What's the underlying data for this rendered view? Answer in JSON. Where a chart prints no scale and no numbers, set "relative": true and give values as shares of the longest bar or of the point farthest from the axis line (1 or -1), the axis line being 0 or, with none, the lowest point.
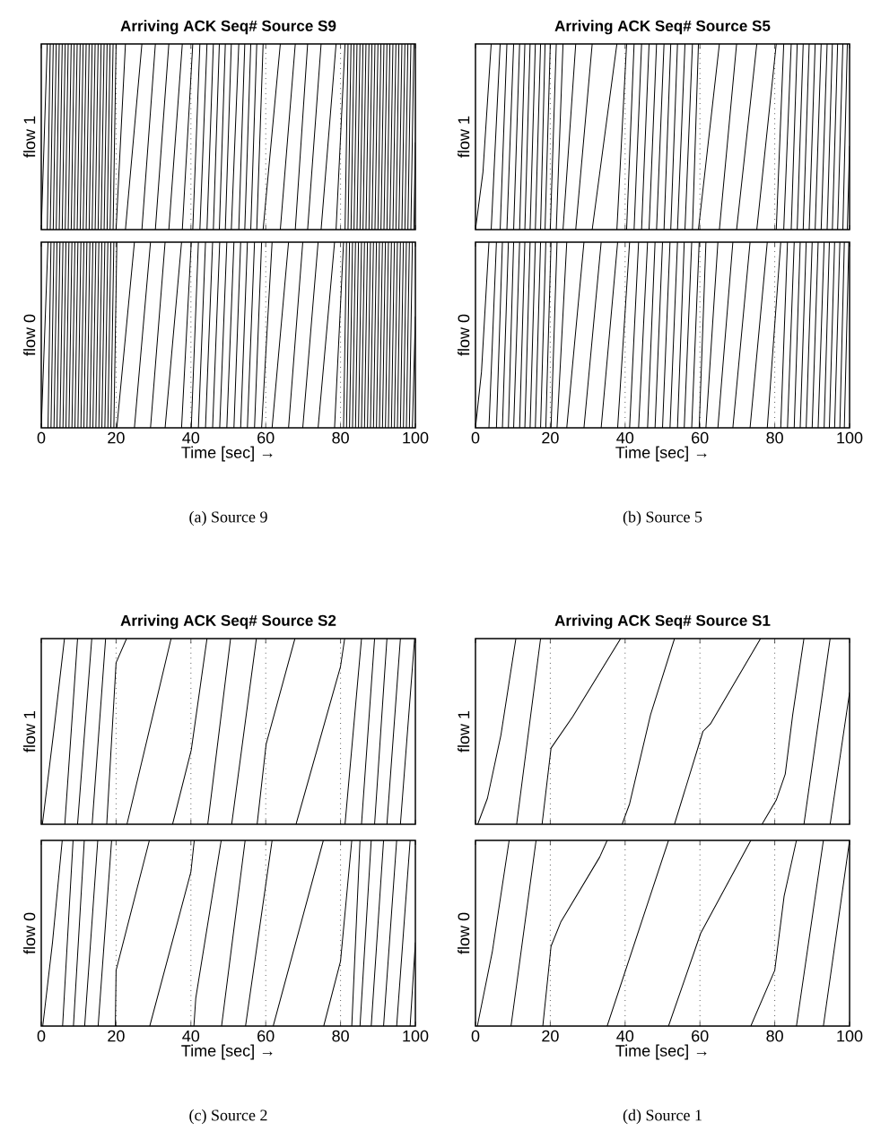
{
  "chart_data": [
    {
      "type": "line",
      "title": "Arriving ACK Seq# Source S9",
      "ylabel": "flow 1",
      "relative": true,
      "xlim": [
        0,
        100
      ],
      "xticks": [
        0,
        20,
        40,
        60,
        80,
        100
      ],
      "tick_labels": false,
      "ref_lines": [
        {
          "axis": "x",
          "value": 20,
          "color": "#000000",
          "line_style": "dotted"
        },
        {
          "axis": "x",
          "value": 40,
          "color": "#000000",
          "line_style": "dotted"
        },
        {
          "axis": "x",
          "value": 60,
          "color": "#000000",
          "line_style": "dotted"
        },
        {
          "axis": "x",
          "value": 80,
          "color": "#000000",
          "line_style": "dotted"
        }
      ],
      "series": [
        {
          "color": "#000000",
          "x": [
            0,
            1.6,
            null,
            1.6,
            2.4,
            null,
            2.4,
            3.2,
            null,
            3.2,
            4.0,
            null,
            4.0,
            4.8,
            null,
            4.8,
            5.6,
            null,
            5.6,
            6.4,
            null,
            6.4,
            7.2,
            null,
            7.2,
            8.0,
            null,
            8.0,
            8.8,
            null,
            8.8,
            9.6,
            null,
            9.6,
            10.4,
            null,
            10.4,
            11.2,
            null,
            11.2,
            12.0,
            null,
            12.0,
            12.8,
            null,
            12.8,
            13.6,
            null,
            13.6,
            14.4,
            null,
            14.4,
            15.2,
            null,
            15.2,
            16.0,
            null,
            16.0,
            16.8,
            null,
            16.8,
            17.6,
            null,
            17.6,
            18.4,
            null,
            18.4,
            19.2,
            null,
            19.2,
            20.0,
            null,
            20.0,
            22.5,
            null,
            22.5,
            26.9,
            null,
            26.9,
            30.5,
            null,
            30.5,
            34.1,
            null,
            34.1,
            37.7,
            null,
            37.7,
            40.5,
            null,
            40.5,
            42.4,
            null,
            42.4,
            44.3,
            null,
            44.3,
            46.0,
            null,
            46.0,
            47.6,
            null,
            47.6,
            49.2,
            null,
            49.2,
            50.8,
            null,
            50.8,
            52.8,
            null,
            52.8,
            54.4,
            null,
            54.4,
            56.0,
            null,
            56.0,
            57.6,
            null,
            57.6,
            59.3,
            null,
            59.3,
            63.9,
            null,
            63.9,
            67.9,
            null,
            67.9,
            71.2,
            null,
            71.2,
            74.8,
            null,
            74.8,
            78.8,
            null,
            78.8,
            81.2,
            null,
            81.2,
            82.0,
            null,
            82.0,
            82.8,
            null,
            82.8,
            83.6,
            null,
            83.6,
            84.4,
            null,
            84.4,
            85.2,
            null,
            85.2,
            86.0,
            null,
            86.0,
            86.8,
            null,
            86.8,
            87.6,
            null,
            87.6,
            88.4,
            null,
            88.4,
            89.2,
            null,
            89.2,
            90.0,
            null,
            90.0,
            90.8,
            null,
            90.8,
            91.6,
            null,
            91.6,
            92.4,
            null,
            92.4,
            93.2,
            null,
            93.2,
            94.0,
            null,
            94.0,
            94.8,
            null,
            94.8,
            95.6,
            null,
            95.6,
            96.4,
            null,
            96.4,
            97.2,
            null,
            97.2,
            98.0,
            null,
            98.0,
            98.8,
            null,
            98.8,
            99.6,
            null,
            99.6,
            100
          ],
          "values": [
            0,
            1,
            null,
            0,
            1,
            null,
            0,
            1,
            null,
            0,
            1,
            null,
            0,
            1,
            null,
            0,
            1,
            null,
            0,
            1,
            null,
            0,
            1,
            null,
            0,
            1,
            null,
            0,
            1,
            null,
            0,
            1,
            null,
            0,
            1,
            null,
            0,
            1,
            null,
            0,
            1,
            null,
            0,
            1,
            null,
            0,
            1,
            null,
            0,
            1,
            null,
            0,
            1,
            null,
            0,
            1,
            null,
            0,
            1,
            null,
            0,
            1,
            null,
            0,
            1,
            null,
            0,
            1,
            null,
            0,
            1,
            null,
            0,
            1,
            null,
            0,
            1,
            null,
            0,
            1,
            null,
            0,
            1,
            null,
            0,
            1,
            null,
            0,
            1,
            null,
            0,
            1,
            null,
            0,
            1,
            null,
            0,
            1,
            null,
            0,
            1,
            null,
            0,
            1,
            null,
            0,
            1,
            null,
            0,
            1,
            null,
            0,
            1,
            null,
            0,
            1,
            null,
            0,
            1,
            null,
            0,
            1,
            null,
            0,
            1,
            null,
            0,
            1,
            null,
            0,
            1,
            null,
            0,
            1,
            null,
            0,
            1,
            null,
            0,
            1,
            null,
            0,
            1,
            null,
            0,
            1,
            null,
            0,
            1,
            null,
            0,
            1,
            null,
            0,
            1,
            null,
            0,
            1,
            null,
            0,
            1,
            null,
            0,
            1,
            null,
            0,
            1,
            null,
            0,
            1,
            null,
            0,
            1,
            null,
            0,
            1,
            null,
            0,
            1,
            null,
            0,
            1,
            null,
            0,
            1,
            null,
            0,
            1,
            null,
            0,
            1,
            null,
            0,
            1,
            null,
            0,
            1,
            null,
            0,
            1,
            null,
            0,
            1,
            null,
            0,
            1,
            null,
            0,
            1,
            null,
            0,
            0.47
          ]
        }
      ]
    },
    {
      "type": "line",
      "ylabel": "flow 0",
      "xlabel": "Time [sec] →",
      "relative": true,
      "xlim": [
        0,
        100
      ],
      "xticks": [
        0,
        20,
        40,
        60,
        80,
        100
      ],
      "tick_labels": "x",
      "annotations": [
        "(a) Source 9"
      ],
      "ref_lines": [
        {
          "axis": "x",
          "value": 20,
          "color": "#000000",
          "line_style": "dotted"
        },
        {
          "axis": "x",
          "value": 40,
          "color": "#000000",
          "line_style": "dotted"
        },
        {
          "axis": "x",
          "value": 60,
          "color": "#000000",
          "line_style": "dotted"
        },
        {
          "axis": "x",
          "value": 80,
          "color": "#000000",
          "line_style": "dotted"
        }
      ],
      "series": [
        {
          "color": "#000000",
          "x": [
            0,
            1.8,
            null,
            1.8,
            2.6,
            null,
            2.6,
            3.4,
            null,
            3.4,
            4.2,
            null,
            4.2,
            5.0,
            null,
            5.0,
            5.8,
            null,
            5.8,
            6.6,
            null,
            6.6,
            7.4,
            null,
            7.4,
            8.2,
            null,
            8.2,
            9.0,
            null,
            9.0,
            9.8,
            null,
            9.8,
            10.6,
            null,
            10.6,
            11.4,
            null,
            11.4,
            12.2,
            null,
            12.2,
            13.0,
            null,
            13.0,
            13.8,
            null,
            13.8,
            14.6,
            null,
            14.6,
            15.4,
            null,
            15.4,
            16.2,
            null,
            16.2,
            17.0,
            null,
            17.0,
            17.8,
            null,
            17.8,
            18.6,
            null,
            18.6,
            19.4,
            null,
            19.4,
            20.2,
            null,
            20.2,
            24.9,
            null,
            24.9,
            29.2,
            null,
            29.2,
            33.1,
            null,
            33.1,
            37.5,
            null,
            37.5,
            40.1,
            null,
            40.1,
            42.0,
            null,
            42.0,
            43.9,
            null,
            43.9,
            45.8,
            null,
            45.8,
            47.7,
            null,
            47.7,
            49.6,
            null,
            49.6,
            51.5,
            null,
            51.5,
            53.3,
            null,
            53.3,
            55.1,
            null,
            55.1,
            57.0,
            null,
            57.0,
            58.9,
            null,
            58.9,
            61.7,
            null,
            61.7,
            66.1,
            null,
            66.1,
            69.9,
            null,
            69.9,
            74.0,
            null,
            74.0,
            78.4,
            null,
            78.4,
            80.8,
            null,
            80.8,
            81.6,
            null,
            81.6,
            82.4,
            null,
            82.4,
            83.2,
            null,
            83.2,
            84.0,
            null,
            84.0,
            84.8,
            null,
            84.8,
            85.6,
            null,
            85.6,
            86.4,
            null,
            86.4,
            87.2,
            null,
            87.2,
            88.0,
            null,
            88.0,
            88.8,
            null,
            88.8,
            89.6,
            null,
            89.6,
            90.4,
            null,
            90.4,
            91.2,
            null,
            91.2,
            92.0,
            null,
            92.0,
            92.8,
            null,
            92.8,
            93.6,
            null,
            93.6,
            94.4,
            null,
            94.4,
            95.2,
            null,
            95.2,
            96.0,
            null,
            96.0,
            96.8,
            null,
            96.8,
            97.6,
            null,
            97.6,
            98.4,
            null,
            98.4,
            99.2,
            null,
            99.2,
            100
          ],
          "values": [
            0,
            1,
            null,
            0,
            1,
            null,
            0,
            1,
            null,
            0,
            1,
            null,
            0,
            1,
            null,
            0,
            1,
            null,
            0,
            1,
            null,
            0,
            1,
            null,
            0,
            1,
            null,
            0,
            1,
            null,
            0,
            1,
            null,
            0,
            1,
            null,
            0,
            1,
            null,
            0,
            1,
            null,
            0,
            1,
            null,
            0,
            1,
            null,
            0,
            1,
            null,
            0,
            1,
            null,
            0,
            1,
            null,
            0,
            1,
            null,
            0,
            1,
            null,
            0,
            1,
            null,
            0,
            1,
            null,
            0,
            1,
            null,
            0,
            1,
            null,
            0,
            1,
            null,
            0,
            1,
            null,
            0,
            1,
            null,
            0,
            1,
            null,
            0,
            1,
            null,
            0,
            1,
            null,
            0,
            1,
            null,
            0,
            1,
            null,
            0,
            1,
            null,
            0,
            1,
            null,
            0,
            1,
            null,
            0,
            1,
            null,
            0,
            1,
            null,
            0,
            1,
            null,
            0,
            1,
            null,
            0,
            1,
            null,
            0,
            1,
            null,
            0,
            1,
            null,
            0,
            1,
            null,
            0,
            1,
            null,
            0,
            1,
            null,
            0,
            1,
            null,
            0,
            1,
            null,
            0,
            1,
            null,
            0,
            1,
            null,
            0,
            1,
            null,
            0,
            1,
            null,
            0,
            1,
            null,
            0,
            1,
            null,
            0,
            1,
            null,
            0,
            1,
            null,
            0,
            1,
            null,
            0,
            1,
            null,
            0,
            1,
            null,
            0,
            1,
            null,
            0,
            1,
            null,
            0,
            1,
            null,
            0,
            1,
            null,
            0,
            1,
            null,
            0,
            1,
            null,
            0,
            1,
            null,
            0,
            1,
            null,
            0,
            1,
            null,
            0,
            0.6
          ]
        }
      ]
    },
    {
      "type": "line",
      "title": "Arriving ACK Seq# Source S5",
      "ylabel": "flow 1",
      "relative": true,
      "xlim": [
        0,
        100
      ],
      "xticks": [
        0,
        20,
        40,
        60,
        80,
        100
      ],
      "tick_labels": false,
      "ref_lines": [
        {
          "axis": "x",
          "value": 20,
          "color": "#000000",
          "line_style": "dotted"
        },
        {
          "axis": "x",
          "value": 40,
          "color": "#000000",
          "line_style": "dotted"
        },
        {
          "axis": "x",
          "value": 60,
          "color": "#000000",
          "line_style": "dotted"
        },
        {
          "axis": "x",
          "value": 80,
          "color": "#000000",
          "line_style": "dotted"
        }
      ],
      "series": [
        {
          "color": "#000000",
          "x": [
            0,
            2.0,
            4.2,
            null,
            4.2,
            6.6,
            null,
            6.6,
            8.4,
            null,
            8.4,
            10.2,
            null,
            10.2,
            11.8,
            null,
            11.8,
            13.2,
            null,
            13.2,
            14.6,
            null,
            14.6,
            16.0,
            null,
            16.0,
            17.4,
            null,
            17.4,
            18.6,
            null,
            18.6,
            20.0,
            null,
            20.0,
            21.6,
            null,
            21.6,
            23.4,
            null,
            23.4,
            26.8,
            null,
            26.8,
            31.2,
            null,
            31.2,
            37.8,
            null,
            37.8,
            40.4,
            null,
            40.4,
            42.4,
            null,
            42.4,
            44.4,
            null,
            44.4,
            46.4,
            null,
            46.4,
            48.4,
            null,
            48.4,
            50.4,
            null,
            50.4,
            52.2,
            null,
            52.2,
            54.0,
            null,
            54.0,
            56.0,
            null,
            56.0,
            58.0,
            null,
            58.0,
            59.6,
            null,
            59.6,
            65.2,
            null,
            65.2,
            69.8,
            null,
            69.8,
            75.2,
            null,
            75.2,
            80.4,
            null,
            80.4,
            82.4,
            null,
            82.4,
            84.4,
            null,
            84.4,
            86.0,
            null,
            86.0,
            87.6,
            null,
            87.6,
            89.2,
            null,
            89.2,
            90.8,
            null,
            90.8,
            92.4,
            null,
            92.4,
            94.0,
            null,
            94.0,
            95.4,
            null,
            95.4,
            96.8,
            null,
            96.8,
            98.2,
            null,
            98.2,
            99.4,
            null,
            99.4,
            100
          ],
          "values": [
            0,
            0.31,
            1,
            null,
            0,
            1,
            null,
            0,
            1,
            null,
            0,
            1,
            null,
            0,
            1,
            null,
            0,
            1,
            null,
            0,
            1,
            null,
            0,
            1,
            null,
            0,
            1,
            null,
            0,
            1,
            null,
            0,
            1,
            null,
            0,
            1,
            null,
            0,
            1,
            null,
            0,
            1,
            null,
            0,
            1,
            null,
            0,
            1,
            null,
            0,
            1,
            null,
            0,
            1,
            null,
            0,
            1,
            null,
            0,
            1,
            null,
            0,
            1,
            null,
            0,
            1,
            null,
            0,
            1,
            null,
            0,
            1,
            null,
            0,
            1,
            null,
            0,
            1,
            null,
            0,
            1,
            null,
            0,
            1,
            null,
            0,
            1,
            null,
            0,
            1,
            null,
            0,
            1,
            null,
            0,
            1,
            null,
            0,
            1,
            null,
            0,
            1,
            null,
            0,
            1,
            null,
            0,
            1,
            null,
            0,
            1,
            null,
            0,
            1,
            null,
            0,
            1,
            null,
            0,
            1,
            null,
            0,
            1,
            null,
            0,
            1,
            null,
            0,
            1,
            null,
            0,
            0.45
          ]
        }
      ]
    },
    {
      "type": "line",
      "ylabel": "flow 0",
      "xlabel": "Time [sec] →",
      "relative": true,
      "xlim": [
        0,
        100
      ],
      "xticks": [
        0,
        20,
        40,
        60,
        80,
        100
      ],
      "tick_labels": "x",
      "annotations": [
        "(b) Source 5"
      ],
      "ref_lines": [
        {
          "axis": "x",
          "value": 20,
          "color": "#000000",
          "line_style": "dotted"
        },
        {
          "axis": "x",
          "value": 40,
          "color": "#000000",
          "line_style": "dotted"
        },
        {
          "axis": "x",
          "value": 60,
          "color": "#000000",
          "line_style": "dotted"
        },
        {
          "axis": "x",
          "value": 80,
          "color": "#000000",
          "line_style": "dotted"
        }
      ],
      "series": [
        {
          "color": "#000000",
          "x": [
            0,
            1.6,
            3.6,
            null,
            3.6,
            5.6,
            null,
            5.6,
            7.2,
            null,
            7.2,
            8.8,
            null,
            8.8,
            10.2,
            null,
            10.2,
            11.8,
            null,
            11.8,
            13.2,
            null,
            13.2,
            14.6,
            null,
            14.6,
            16.0,
            null,
            16.0,
            17.4,
            null,
            17.4,
            18.8,
            null,
            18.8,
            20.2,
            null,
            20.2,
            21.8,
            null,
            21.8,
            24.4,
            null,
            24.4,
            29.0,
            null,
            29.0,
            33.6,
            null,
            33.6,
            38.0,
            null,
            38.0,
            41.2,
            null,
            41.2,
            43.6,
            null,
            43.6,
            46.0,
            null,
            46.0,
            48.0,
            null,
            48.0,
            50.0,
            null,
            50.0,
            52.0,
            null,
            52.0,
            54.0,
            null,
            54.0,
            55.8,
            null,
            55.8,
            57.8,
            null,
            57.8,
            59.8,
            null,
            59.8,
            61.6,
            null,
            61.6,
            64.8,
            null,
            64.8,
            68.8,
            null,
            68.8,
            73.4,
            null,
            73.4,
            78.0,
            null,
            78.0,
            81.6,
            null,
            81.6,
            83.4,
            null,
            83.4,
            85.2,
            null,
            85.2,
            86.8,
            null,
            86.8,
            88.4,
            null,
            88.4,
            90.0,
            null,
            90.0,
            91.6,
            null,
            91.6,
            93.2,
            null,
            93.2,
            94.6,
            null,
            94.6,
            96.0,
            null,
            96.0,
            97.4,
            null,
            97.4,
            98.6,
            null,
            98.6,
            99.8
          ],
          "values": [
            0,
            0.3,
            1,
            null,
            0,
            1,
            null,
            0,
            1,
            null,
            0,
            1,
            null,
            0,
            1,
            null,
            0,
            1,
            null,
            0,
            1,
            null,
            0,
            1,
            null,
            0,
            1,
            null,
            0,
            1,
            null,
            0,
            1,
            null,
            0,
            1,
            null,
            0,
            1,
            null,
            0,
            1,
            null,
            0,
            1,
            null,
            0,
            1,
            null,
            0,
            1,
            null,
            0,
            1,
            null,
            0,
            1,
            null,
            0,
            1,
            null,
            0,
            1,
            null,
            0,
            1,
            null,
            0,
            1,
            null,
            0,
            1,
            null,
            0,
            1,
            null,
            0,
            1,
            null,
            0,
            1,
            null,
            0,
            1,
            null,
            0,
            1,
            null,
            0,
            1,
            null,
            0,
            1,
            null,
            0,
            1,
            null,
            0,
            1,
            null,
            0,
            1,
            null,
            0,
            1,
            null,
            0,
            1,
            null,
            0,
            1,
            null,
            0,
            1,
            null,
            0,
            1,
            null,
            0,
            1,
            null,
            0,
            1,
            null,
            0,
            1,
            null,
            0,
            1,
            null,
            0,
            1,
            null,
            0,
            1
          ]
        }
      ]
    },
    {
      "type": "line",
      "title": "Arriving ACK Seq# Source S2",
      "ylabel": "flow 1",
      "relative": true,
      "xlim": [
        0,
        100
      ],
      "xticks": [
        0,
        20,
        40,
        60,
        80,
        100
      ],
      "tick_labels": false,
      "ref_lines": [
        {
          "axis": "x",
          "value": 20,
          "color": "#000000",
          "line_style": "dotted"
        },
        {
          "axis": "x",
          "value": 40,
          "color": "#000000",
          "line_style": "dotted"
        },
        {
          "axis": "x",
          "value": 60,
          "color": "#000000",
          "line_style": "dotted"
        },
        {
          "axis": "x",
          "value": 80,
          "color": "#000000",
          "line_style": "dotted"
        }
      ],
      "series": [
        {
          "color": "#000000",
          "x": [
            0.3,
            3.4,
            6.2,
            null,
            6.3,
            9.7,
            null,
            9.7,
            13.5,
            null,
            13.6,
            17.2,
            null,
            17.5,
            20.0,
            22.8,
            null,
            22.9,
            34.7,
            null,
            35.1,
            40.1,
            44.3,
            null,
            44.5,
            50.6,
            null,
            50.9,
            57.5,
            null,
            57.7,
            60.1,
            67.8,
            null,
            68.1,
            80.0,
            81.1,
            null,
            81.2,
            85.6,
            null,
            85.6,
            89.1,
            null,
            89.1,
            92.4,
            null,
            92.4,
            96.0,
            null,
            96.0,
            99.8
          ],
          "values": [
            0,
            0.51,
            1,
            null,
            0,
            1,
            null,
            0,
            1,
            null,
            0,
            1,
            null,
            0,
            0.87,
            1,
            null,
            0,
            1,
            null,
            0,
            0.4,
            1,
            null,
            0,
            1,
            null,
            0,
            1,
            null,
            0,
            0.43,
            1,
            null,
            0,
            0.85,
            1,
            null,
            0,
            1,
            null,
            0,
            1,
            null,
            0,
            1,
            null,
            0,
            1,
            null,
            0,
            1
          ]
        }
      ]
    },
    {
      "type": "line",
      "ylabel": "flow 0",
      "xlabel": "Time [sec] →",
      "relative": true,
      "xlim": [
        0,
        100
      ],
      "xticks": [
        0,
        20,
        40,
        60,
        80,
        100
      ],
      "tick_labels": "x",
      "annotations": [
        "(c) Source 2"
      ],
      "ref_lines": [
        {
          "axis": "x",
          "value": 20,
          "color": "#000000",
          "line_style": "dotted"
        },
        {
          "axis": "x",
          "value": 40,
          "color": "#000000",
          "line_style": "dotted"
        },
        {
          "axis": "x",
          "value": 60,
          "color": "#000000",
          "line_style": "dotted"
        },
        {
          "axis": "x",
          "value": 80,
          "color": "#000000",
          "line_style": "dotted"
        }
      ],
      "series": [
        {
          "color": "#000000",
          "x": [
            0.4,
            3.0,
            5.6,
            null,
            5.7,
            8.5,
            null,
            8.6,
            11.5,
            null,
            11.6,
            15.1,
            null,
            15.2,
            18.8,
            null,
            19.8,
            20.0,
            28.9,
            null,
            29.0,
            40.0,
            40.9,
            null,
            40.8,
            41.3,
            48.1,
            null,
            48.2,
            54.5,
            null,
            54.6,
            61.7,
            null,
            62.0,
            75.4,
            null,
            75.5,
            80.0,
            83.0,
            null,
            83.0,
            85.2,
            null,
            85.2,
            88.2,
            null,
            88.2,
            91.5,
            null,
            91.5,
            95.0,
            null,
            95.0,
            98.6,
            null,
            98.6,
            100
          ],
          "values": [
            0,
            0.45,
            1,
            null,
            0,
            1,
            null,
            0,
            1,
            null,
            0,
            1,
            null,
            0,
            1,
            null,
            0,
            0.3,
            1,
            null,
            0,
            0.83,
            1,
            null,
            0,
            0.15,
            1,
            null,
            0,
            1,
            null,
            0,
            1,
            null,
            0,
            1,
            null,
            0,
            0.35,
            1,
            null,
            0,
            1,
            null,
            0,
            1,
            null,
            0,
            1,
            null,
            0,
            1,
            null,
            0,
            1,
            null,
            0,
            0.45
          ]
        }
      ]
    },
    {
      "type": "line",
      "title": "Arriving ACK Seq# Source S1",
      "ylabel": "flow 1",
      "relative": true,
      "xlim": [
        0,
        100
      ],
      "xticks": [
        0,
        20,
        40,
        60,
        80,
        100
      ],
      "tick_labels": false,
      "ref_lines": [
        {
          "axis": "x",
          "value": 20,
          "color": "#000000",
          "line_style": "dotted"
        },
        {
          "axis": "x",
          "value": 40,
          "color": "#000000",
          "line_style": "dotted"
        },
        {
          "axis": "x",
          "value": 60,
          "color": "#000000",
          "line_style": "dotted"
        },
        {
          "axis": "x",
          "value": 80,
          "color": "#000000",
          "line_style": "dotted"
        }
      ],
      "series": [
        {
          "color": "#000000",
          "x": [
            0.6,
            3.2,
            6.8,
            10.8,
            null,
            11.0,
            17.4,
            null,
            17.8,
            20.2,
            26.0,
            38.8,
            null,
            39.2,
            41.2,
            46.8,
            53.2,
            null,
            53.2,
            60.8,
            62.8,
            76.2,
            null,
            76.6,
            80.4,
            82.8,
            84.8,
            87.8,
            null,
            87.8,
            94.8,
            null,
            94.8,
            100
          ],
          "values": [
            0,
            0.14,
            0.48,
            1,
            null,
            0,
            1,
            null,
            0,
            0.41,
            0.58,
            1,
            null,
            0,
            0.11,
            0.59,
            1,
            null,
            0,
            0.5,
            0.54,
            1,
            null,
            0,
            0.13,
            0.27,
            0.59,
            1,
            null,
            0,
            1,
            null,
            0,
            0.71
          ]
        }
      ]
    },
    {
      "type": "line",
      "ylabel": "flow 0",
      "xlabel": "Time [sec] →",
      "relative": true,
      "xlim": [
        0,
        100
      ],
      "xticks": [
        0,
        20,
        40,
        60,
        80,
        100
      ],
      "tick_labels": "x",
      "annotations": [
        "(d) Source 1"
      ],
      "ref_lines": [
        {
          "axis": "x",
          "value": 20,
          "color": "#000000",
          "line_style": "dotted"
        },
        {
          "axis": "x",
          "value": 40,
          "color": "#000000",
          "line_style": "dotted"
        },
        {
          "axis": "x",
          "value": 60,
          "color": "#000000",
          "line_style": "dotted"
        },
        {
          "axis": "x",
          "value": 80,
          "color": "#000000",
          "line_style": "dotted"
        }
      ],
      "series": [
        {
          "color": "#000000",
          "x": [
            0.5,
            4.5,
            9.0,
            null,
            9.5,
            16.2,
            null,
            18.0,
            20.2,
            22.8,
            33.2,
            35.2,
            null,
            35.2,
            51.6,
            null,
            51.6,
            60.2,
            73.6,
            null,
            73.6,
            80.0,
            82.5,
            85.8,
            null,
            85.8,
            93.0,
            null,
            93.0,
            100
          ],
          "values": [
            0,
            0.4,
            1,
            null,
            0,
            1,
            null,
            0,
            0.43,
            0.56,
            0.91,
            1,
            null,
            0,
            1,
            null,
            0,
            0.5,
            1,
            null,
            0,
            0.3,
            0.7,
            1,
            null,
            0,
            1,
            null,
            0,
            1
          ]
        }
      ]
    }
  ]
}
